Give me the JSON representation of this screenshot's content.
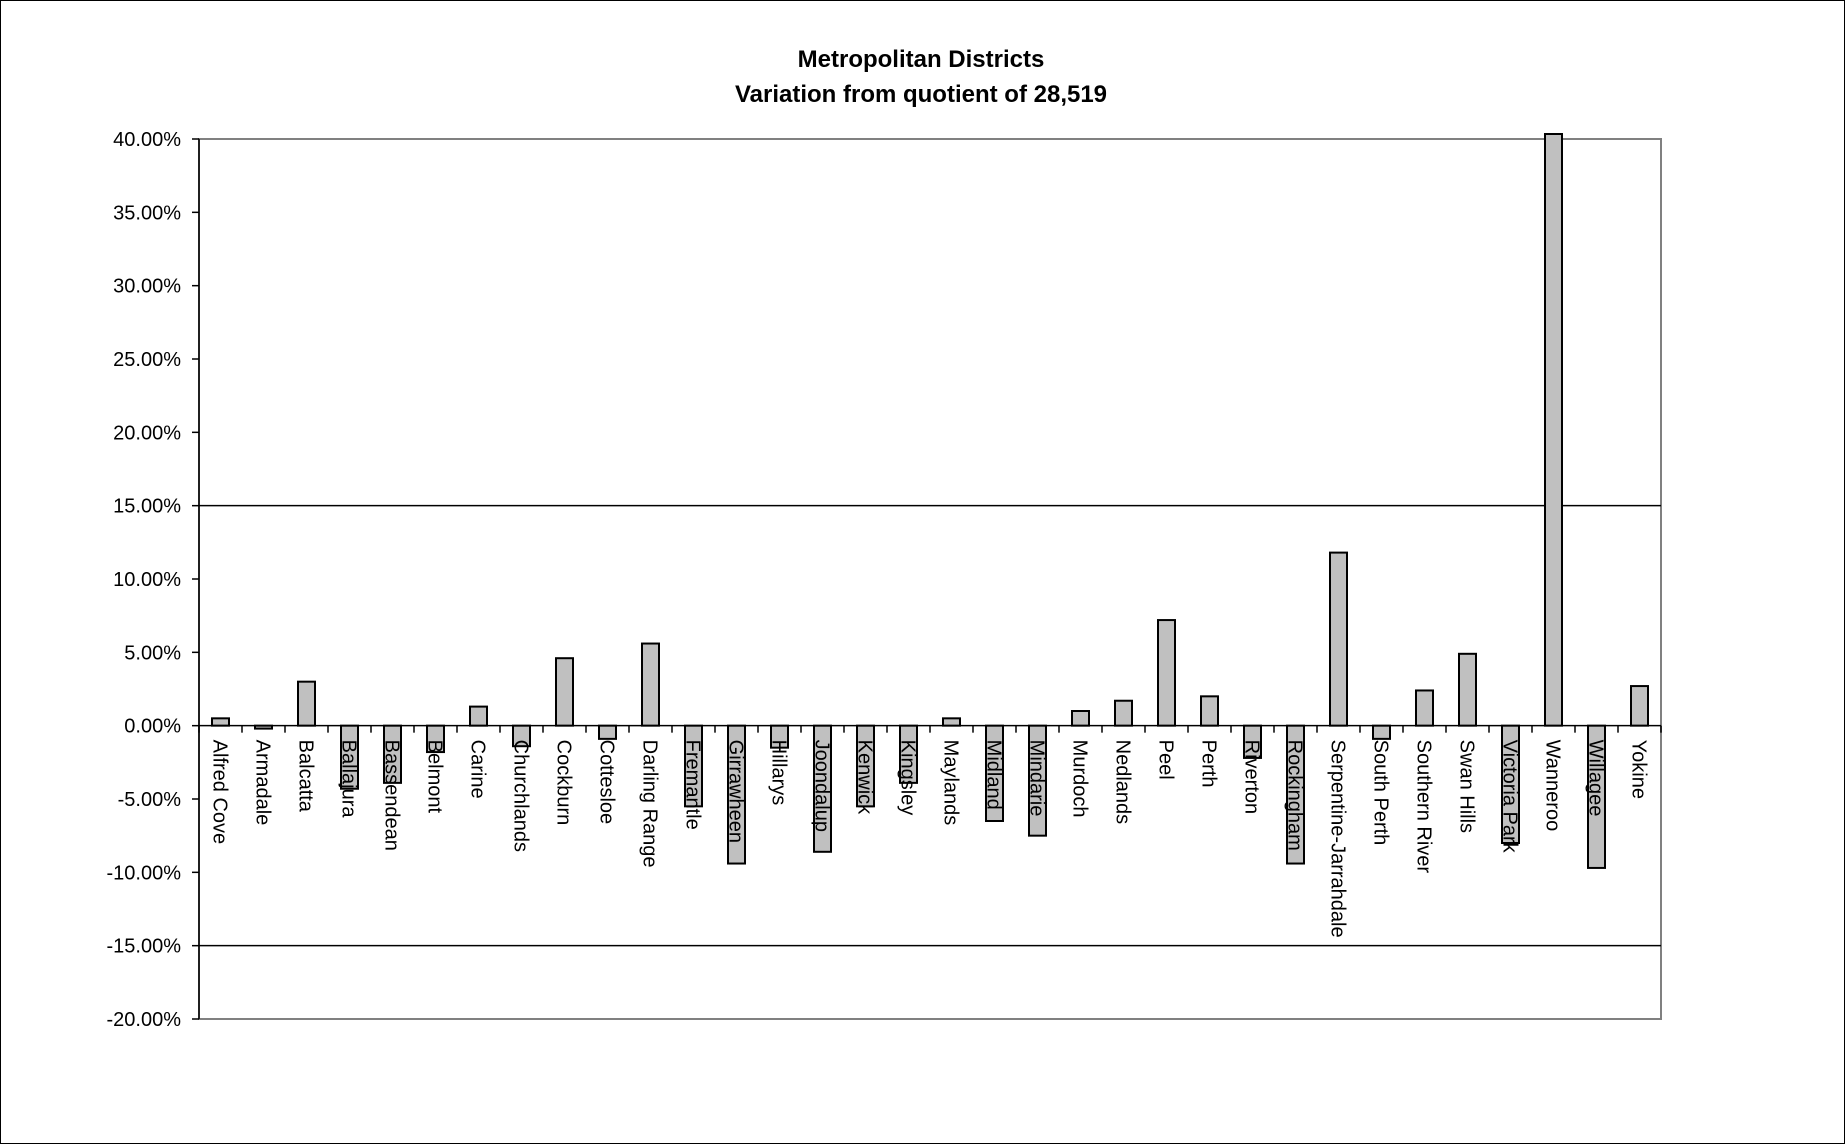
{
  "chart_data": {
    "type": "bar",
    "title": "Metropolitan Districts",
    "subtitle": "Variation from quotient of 28,519",
    "xlabel": "",
    "ylabel": "",
    "ylim": [
      -20,
      40
    ],
    "y_tick_step": 5,
    "y_tick_labels": [
      "40.00%",
      "35.00%",
      "30.00%",
      "25.00%",
      "20.00%",
      "15.00%",
      "10.00%",
      "5.00%",
      "0.00%",
      "-5.00%",
      "-10.00%",
      "-15.00%",
      "-20.00%"
    ],
    "reference_lines": [
      15,
      -15
    ],
    "grid": false,
    "legend": "none",
    "bar_color": "#c0c0c0",
    "categories": [
      "Alfred Cove",
      "Armadale",
      "Balcatta",
      "Ballajura",
      "Bassendean",
      "Belmont",
      "Carine",
      "Churchlands",
      "Cockburn",
      "Cottesloe",
      "Darling Range",
      "Fremantle",
      "Girrawheen",
      "Hillarys",
      "Joondalup",
      "Kenwick",
      "Kingsley",
      "Maylands",
      "Midland",
      "Mindarie",
      "Murdoch",
      "Nedlands",
      "Peel",
      "Perth",
      "Riverton",
      "Rockingham",
      "Serpentine-Jarrahdale",
      "South Perth",
      "Southern River",
      "Swan Hills",
      "Victoria Park",
      "Wanneroo",
      "Willagee",
      "Yokine"
    ],
    "values": [
      0.5,
      -0.2,
      3.0,
      -4.3,
      -3.9,
      -1.8,
      1.3,
      -1.4,
      4.6,
      -0.9,
      5.6,
      -5.5,
      -9.4,
      -1.5,
      -8.6,
      -5.5,
      -3.9,
      0.5,
      -6.5,
      -7.5,
      1.0,
      1.7,
      7.2,
      2.0,
      -2.2,
      -9.4,
      11.8,
      -0.9,
      2.4,
      4.9,
      -8.0,
      40.2,
      -9.7,
      2.7
    ]
  }
}
